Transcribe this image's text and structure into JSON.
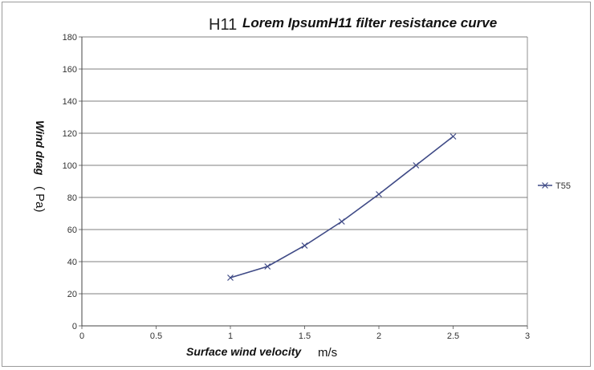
{
  "chart_data": {
    "type": "line",
    "title_prefix": "H11",
    "title": "Lorem IpsumH11 filter resistance curve",
    "xlabel": "Surface wind velocity",
    "xlabel_unit": "m/s",
    "ylabel": "Wind drag",
    "ylabel_unit": "( Pa)",
    "xlim": [
      0,
      3
    ],
    "ylim": [
      0,
      180
    ],
    "x_ticks": [
      "0",
      "0.5",
      "1",
      "1.5",
      "2",
      "2.5",
      "3"
    ],
    "y_ticks": [
      "0",
      "20",
      "40",
      "60",
      "80",
      "100",
      "120",
      "140",
      "160",
      "180"
    ],
    "grid": "horizontal",
    "legend_position": "right",
    "series": [
      {
        "name": "T55",
        "color": "#3f4a86",
        "marker": "x",
        "x": [
          1,
          1.25,
          1.5,
          1.75,
          2,
          2.25,
          2.5
        ],
        "y": [
          30,
          37,
          50,
          65,
          82,
          100,
          118
        ]
      }
    ]
  }
}
